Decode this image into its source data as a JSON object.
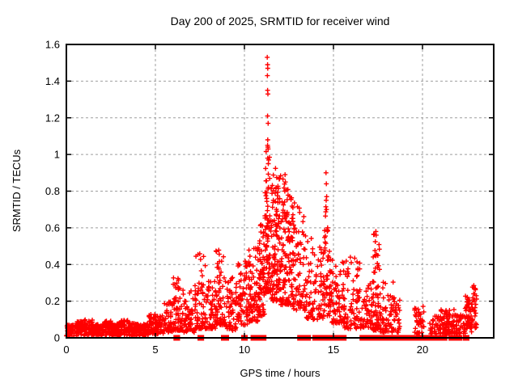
{
  "chart_data": {
    "type": "scatter",
    "title": "Day 200 of 2025, SRMTID for receiver wind",
    "xlabel": "GPS time / hours",
    "ylabel": "SRMTID / TECUs",
    "xlim": [
      0,
      24
    ],
    "ylim": [
      0,
      1.6
    ],
    "xticks": [
      0,
      5,
      10,
      15,
      20
    ],
    "xtick_labels": [
      "0",
      "5",
      "10",
      "15",
      "20"
    ],
    "yticks": [
      0,
      0.2,
      0.4,
      0.6,
      0.8,
      1,
      1.2,
      1.4,
      1.6
    ],
    "ytick_labels": [
      "0",
      "0.2",
      "0.4",
      "0.6",
      "0.8",
      "1",
      "1.2",
      "1.4",
      "1.6"
    ],
    "grid": true,
    "legend": false,
    "marker": "plus",
    "colors": {
      "marker": "#ff0000",
      "grid": "#9e9e9e",
      "axis": "#000000",
      "text": "#000000",
      "background": "#ffffff"
    },
    "seed": 7,
    "clusters": [
      {
        "x0": 0.0,
        "x1": 0.5,
        "n": 55,
        "y0": 0.01,
        "y1": 0.07,
        "exp": 1.2
      },
      {
        "x0": 0.5,
        "x1": 1.0,
        "n": 55,
        "y0": 0.01,
        "y1": 0.09,
        "exp": 1.2
      },
      {
        "x0": 1.0,
        "x1": 1.5,
        "n": 55,
        "y0": 0.015,
        "y1": 0.1,
        "exp": 1.2
      },
      {
        "x0": 1.5,
        "x1": 2.0,
        "n": 55,
        "y0": 0.01,
        "y1": 0.075,
        "exp": 1.2
      },
      {
        "x0": 2.0,
        "x1": 2.5,
        "n": 55,
        "y0": 0.015,
        "y1": 0.095,
        "exp": 1.2
      },
      {
        "x0": 2.5,
        "x1": 3.0,
        "n": 55,
        "y0": 0.01,
        "y1": 0.08,
        "exp": 1.2
      },
      {
        "x0": 3.0,
        "x1": 3.5,
        "n": 55,
        "y0": 0.015,
        "y1": 0.1,
        "exp": 1.2
      },
      {
        "x0": 3.5,
        "x1": 4.0,
        "n": 55,
        "y0": 0.01,
        "y1": 0.08,
        "exp": 1.2
      },
      {
        "x0": 4.0,
        "x1": 4.6,
        "n": 60,
        "y0": 0.01,
        "y1": 0.08,
        "exp": 1.2
      },
      {
        "x0": 4.6,
        "x1": 5.5,
        "n": 90,
        "y0": 0.02,
        "y1": 0.13,
        "exp": 1.3
      },
      {
        "x0": 5.5,
        "x1": 6.0,
        "n": 50,
        "y0": 0.03,
        "y1": 0.2,
        "exp": 1.5
      },
      {
        "x0": 6.0,
        "x1": 6.5,
        "n": 60,
        "y0": 0.04,
        "y1": 0.33,
        "exp": 1.8
      },
      {
        "x0": 6.5,
        "x1": 7.2,
        "n": 60,
        "y0": 0.03,
        "y1": 0.26,
        "exp": 1.8
      },
      {
        "x0": 7.2,
        "x1": 7.9,
        "n": 70,
        "y0": 0.05,
        "y1": 0.46,
        "exp": 1.9
      },
      {
        "x0": 7.9,
        "x1": 8.4,
        "n": 55,
        "y0": 0.05,
        "y1": 0.31,
        "exp": 1.7
      },
      {
        "x0": 8.4,
        "x1": 8.95,
        "n": 65,
        "y0": 0.07,
        "y1": 0.48,
        "exp": 1.8
      },
      {
        "x0": 8.95,
        "x1": 9.6,
        "n": 55,
        "y0": 0.04,
        "y1": 0.33,
        "exp": 1.7
      },
      {
        "x0": 9.6,
        "x1": 10.25,
        "n": 70,
        "y0": 0.07,
        "y1": 0.42,
        "exp": 1.7
      },
      {
        "x0": 10.25,
        "x1": 10.85,
        "n": 80,
        "y0": 0.09,
        "y1": 0.52,
        "exp": 1.6
      },
      {
        "x0": 10.85,
        "x1": 11.15,
        "n": 60,
        "y0": 0.12,
        "y1": 0.62,
        "exp": 1.5
      },
      {
        "x0": 11.15,
        "x1": 11.45,
        "n": 85,
        "y0": 0.25,
        "y1": 1.05,
        "exp": 1.8
      },
      {
        "x0": 11.45,
        "x1": 12.05,
        "n": 120,
        "y0": 0.2,
        "y1": 0.93,
        "exp": 1.5
      },
      {
        "x0": 12.05,
        "x1": 12.65,
        "n": 110,
        "y0": 0.18,
        "y1": 0.88,
        "exp": 1.6
      },
      {
        "x0": 12.65,
        "x1": 13.35,
        "n": 85,
        "y0": 0.15,
        "y1": 0.74,
        "exp": 1.6
      },
      {
        "x0": 13.35,
        "x1": 13.95,
        "n": 55,
        "y0": 0.1,
        "y1": 0.56,
        "exp": 1.6
      },
      {
        "x0": 13.95,
        "x1": 14.45,
        "n": 45,
        "y0": 0.1,
        "y1": 0.5,
        "exp": 1.6
      },
      {
        "x0": 14.45,
        "x1": 14.8,
        "n": 50,
        "y0": 0.12,
        "y1": 0.78,
        "exp": 1.8
      },
      {
        "x0": 14.8,
        "x1": 15.6,
        "n": 75,
        "y0": 0.08,
        "y1": 0.45,
        "exp": 1.6
      },
      {
        "x0": 15.6,
        "x1": 16.5,
        "n": 75,
        "y0": 0.05,
        "y1": 0.44,
        "exp": 1.7
      },
      {
        "x0": 16.5,
        "x1": 17.2,
        "n": 55,
        "y0": 0.05,
        "y1": 0.33,
        "exp": 1.6
      },
      {
        "x0": 17.2,
        "x1": 17.6,
        "n": 65,
        "y0": 0.04,
        "y1": 0.58,
        "exp": 1.7
      },
      {
        "x0": 17.6,
        "x1": 18.35,
        "n": 55,
        "y0": 0.03,
        "y1": 0.31,
        "exp": 1.7
      },
      {
        "x0": 18.35,
        "x1": 18.75,
        "n": 30,
        "y0": 0.03,
        "y1": 0.22,
        "exp": 1.5
      },
      {
        "x0": 19.55,
        "x1": 20.1,
        "n": 40,
        "y0": 0.02,
        "y1": 0.19,
        "exp": 1.4
      },
      {
        "x0": 20.4,
        "x1": 21.0,
        "n": 35,
        "y0": 0.02,
        "y1": 0.12,
        "exp": 1.3
      },
      {
        "x0": 21.0,
        "x1": 21.9,
        "n": 90,
        "y0": 0.02,
        "y1": 0.16,
        "exp": 1.3
      },
      {
        "x0": 21.9,
        "x1": 22.4,
        "n": 40,
        "y0": 0.02,
        "y1": 0.13,
        "exp": 1.3
      },
      {
        "x0": 22.4,
        "x1": 22.75,
        "n": 45,
        "y0": 0.05,
        "y1": 0.25,
        "exp": 1.4
      },
      {
        "x0": 22.75,
        "x1": 23.05,
        "n": 30,
        "y0": 0.03,
        "y1": 0.29,
        "exp": 0.8
      }
    ],
    "extra_points": [
      [
        11.28,
        1.53
      ],
      [
        11.3,
        1.49
      ],
      [
        11.31,
        1.47
      ],
      [
        11.29,
        1.43
      ],
      [
        11.3,
        1.35
      ],
      [
        11.32,
        1.33
      ],
      [
        11.3,
        1.21
      ],
      [
        11.33,
        1.17
      ],
      [
        11.31,
        1.08
      ],
      [
        11.3,
        1.05
      ],
      [
        11.32,
        1.04
      ],
      [
        11.33,
        1.03
      ],
      [
        11.31,
        0.98
      ],
      [
        11.34,
        0.95
      ],
      [
        11.36,
        0.97
      ],
      [
        12.28,
        0.89
      ],
      [
        12.3,
        0.85
      ],
      [
        12.27,
        0.8
      ],
      [
        14.58,
        0.9
      ],
      [
        14.6,
        0.84
      ],
      [
        14.62,
        0.77
      ],
      [
        14.59,
        0.75
      ],
      [
        14.61,
        0.7
      ],
      [
        15.95,
        0.44
      ],
      [
        16.0,
        0.41
      ],
      [
        17.38,
        0.58
      ],
      [
        17.4,
        0.56
      ],
      [
        22.88,
        0.285
      ],
      [
        22.9,
        0.27
      ]
    ],
    "baseline_ranges": [
      [
        6.15,
        6.25
      ],
      [
        7.5,
        7.6
      ],
      [
        8.82,
        8.88
      ],
      [
        8.95,
        9.0
      ],
      [
        9.95,
        10.05
      ],
      [
        10.48,
        10.58
      ],
      [
        10.65,
        10.75
      ],
      [
        11.0,
        11.1
      ],
      [
        13.1,
        13.35
      ],
      [
        13.45,
        13.6
      ],
      [
        13.95,
        14.2
      ],
      [
        14.3,
        14.5
      ],
      [
        14.65,
        14.9
      ],
      [
        15.0,
        15.2
      ],
      [
        15.35,
        15.6
      ],
      [
        16.6,
        16.75
      ],
      [
        16.9,
        17.1
      ],
      [
        17.3,
        17.5
      ],
      [
        17.6,
        17.8
      ],
      [
        18.0,
        18.15
      ],
      [
        18.25,
        18.4
      ],
      [
        18.5,
        18.55
      ],
      [
        18.62,
        18.66
      ],
      [
        18.72,
        18.77
      ],
      [
        18.85,
        18.9
      ],
      [
        18.95,
        19.0
      ],
      [
        19.1,
        19.3
      ],
      [
        19.4,
        19.6
      ],
      [
        19.7,
        19.9
      ],
      [
        20.0,
        20.3
      ],
      [
        20.4,
        20.55
      ],
      [
        20.65,
        20.8
      ],
      [
        21.0,
        21.1
      ],
      [
        21.2,
        21.26
      ],
      [
        21.6,
        21.75
      ],
      [
        21.9,
        22.1
      ],
      [
        22.4,
        22.5
      ]
    ]
  }
}
